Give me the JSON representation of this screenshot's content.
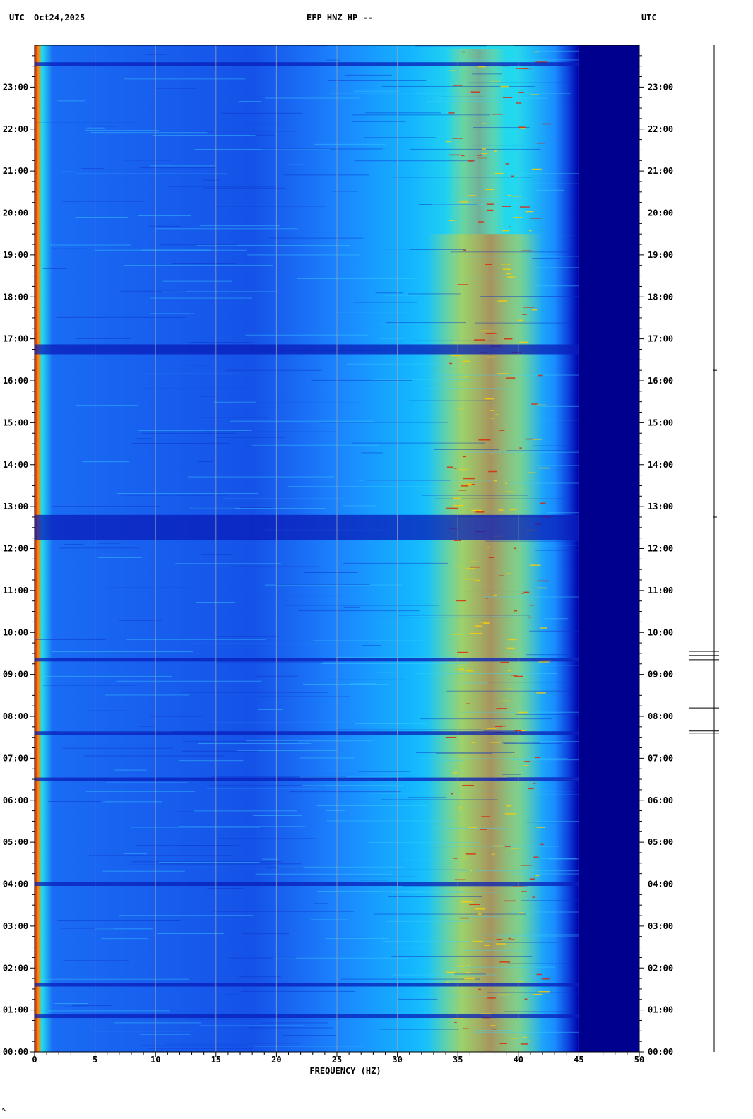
{
  "header": {
    "left_tz": "UTC",
    "date": "Oct24,2025",
    "station": "EFP HNZ HP --",
    "right_tz": "UTC"
  },
  "footer_mark": "↖",
  "chart_data": {
    "type": "heatmap",
    "title": "EFP HNZ HP --",
    "xlabel": "FREQUENCY (HZ)",
    "ylabel": "",
    "xlim": [
      0,
      50
    ],
    "ylim": [
      0,
      24
    ],
    "x_ticks": [
      0,
      5,
      10,
      15,
      20,
      25,
      30,
      35,
      40,
      45,
      50
    ],
    "x_tick_labels": [
      "0",
      "5",
      "10",
      "15",
      "20",
      "25",
      "30",
      "35",
      "40",
      "45",
      "50"
    ],
    "y_ticks": [
      0,
      1,
      2,
      3,
      4,
      5,
      6,
      7,
      8,
      9,
      10,
      11,
      12,
      13,
      14,
      15,
      16,
      17,
      18,
      19,
      20,
      21,
      22,
      23
    ],
    "y_tick_labels": [
      "00:00",
      "01:00",
      "02:00",
      "03:00",
      "04:00",
      "05:00",
      "06:00",
      "07:00",
      "08:00",
      "09:00",
      "10:00",
      "11:00",
      "12:00",
      "13:00",
      "14:00",
      "15:00",
      "16:00",
      "17:00",
      "18:00",
      "19:00",
      "20:00",
      "21:00",
      "22:00",
      "23:00"
    ],
    "grid": true,
    "colorscale": [
      "#00008b",
      "#0000cd",
      "#1e5aff",
      "#00aaff",
      "#00e5e5",
      "#ccff33",
      "#ffcc00",
      "#ff4400",
      "#b00000"
    ],
    "features": {
      "quiet_bands_hours": [
        0.85,
        1.6,
        4.0,
        6.5,
        7.6,
        9.35,
        12.5,
        16.75,
        23.55
      ],
      "energy_band_hz": [
        32.5,
        42.0
      ],
      "cutoff_hz": 45
    },
    "event_marks_hours": [
      9.55,
      9.45,
      9.35,
      8.2,
      7.65,
      7.6,
      16.25,
      12.75
    ]
  }
}
